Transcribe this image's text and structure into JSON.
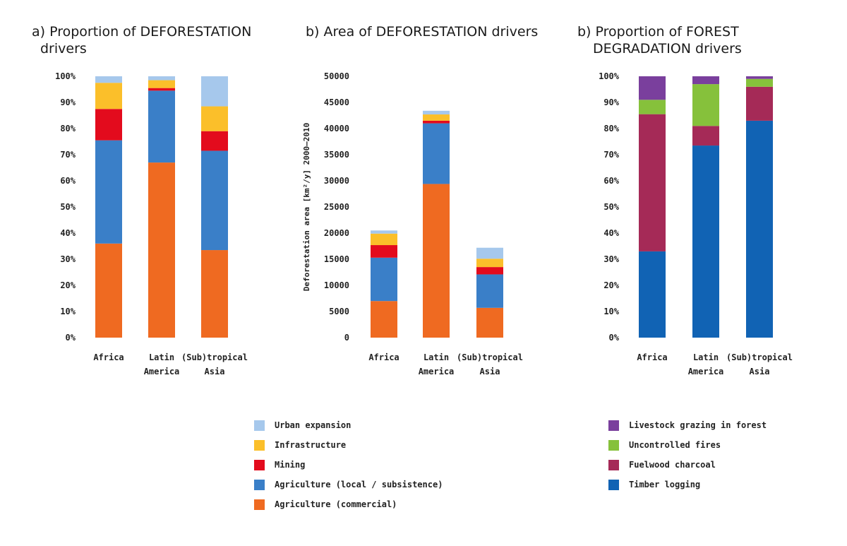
{
  "titles": {
    "a": [
      "a) Proportion of DEFORESTATION",
      "drivers"
    ],
    "b": [
      "b) Area of DEFORESTATION drivers"
    ],
    "c": [
      "b) Proportion of FOREST",
      "DEGRADATION drivers"
    ]
  },
  "colors": {
    "urban": "#a6c8ec",
    "infra": "#fbbf2a",
    "mining": "#e30b1d",
    "agri_local": "#3a7fc8",
    "agri_comm": "#ef6a21",
    "livestock": "#7a3f9d",
    "fires": "#86c13b",
    "fuelwood": "#a52a57",
    "timber": "#1163b4"
  },
  "chart_data": [
    {
      "type": "bar",
      "stacked": true,
      "title": "a) Proportion of DEFORESTATION drivers",
      "categories": [
        [
          "Africa"
        ],
        [
          "Latin",
          "America"
        ],
        [
          "(Sub)tropical",
          "Asia"
        ]
      ],
      "yticks": [
        "0%",
        "10%",
        "20%",
        "30%",
        "40%",
        "50%",
        "60%",
        "70%",
        "80%",
        "90%",
        "100%"
      ],
      "ylim": [
        0,
        100
      ],
      "ylabel": "",
      "series": [
        {
          "name": "Agriculture (commercial)",
          "color_key": "agri_comm",
          "values": [
            36,
            67,
            33.5
          ]
        },
        {
          "name": "Agriculture (local / subsistence)",
          "color_key": "agri_local",
          "values": [
            39.5,
            27.5,
            38
          ]
        },
        {
          "name": "Mining",
          "color_key": "mining",
          "values": [
            12,
            1,
            7.5
          ]
        },
        {
          "name": "Infrastructure",
          "color_key": "infra",
          "values": [
            10,
            3,
            9.5
          ]
        },
        {
          "name": "Urban expansion",
          "color_key": "urban",
          "values": [
            2.5,
            1.5,
            11.5
          ]
        }
      ]
    },
    {
      "type": "bar",
      "stacked": true,
      "title": "b) Area of DEFORESTATION drivers",
      "categories": [
        [
          "Africa"
        ],
        [
          "Latin",
          "America"
        ],
        [
          "(Sub)tropical",
          "Asia"
        ]
      ],
      "yticks": [
        "0",
        "5000",
        "10000",
        "15000",
        "20000",
        "25000",
        "30000",
        "35000",
        "40000",
        "45000",
        "50000"
      ],
      "ylim": [
        0,
        50000
      ],
      "ylabel": "Deforestation area [km²/y] 2000–2010",
      "series": [
        {
          "name": "Agriculture (commercial)",
          "color_key": "agri_comm",
          "values": [
            7000,
            29400,
            5700
          ]
        },
        {
          "name": "Agriculture (local / subsistence)",
          "color_key": "agri_local",
          "values": [
            8300,
            11600,
            6400
          ]
        },
        {
          "name": "Mining",
          "color_key": "mining",
          "values": [
            2400,
            500,
            1400
          ]
        },
        {
          "name": "Infrastructure",
          "color_key": "infra",
          "values": [
            2200,
            1200,
            1600
          ]
        },
        {
          "name": "Urban expansion",
          "color_key": "urban",
          "values": [
            600,
            700,
            2100
          ]
        }
      ]
    },
    {
      "type": "bar",
      "stacked": true,
      "title": "b) Proportion of FOREST DEGRADATION drivers",
      "categories": [
        [
          "Africa"
        ],
        [
          "Latin",
          "America"
        ],
        [
          "(Sub)tropical",
          "Asia"
        ]
      ],
      "yticks": [
        "0%",
        "10%",
        "20%",
        "30%",
        "40%",
        "50%",
        "60%",
        "70%",
        "80%",
        "90%",
        "100%"
      ],
      "ylim": [
        0,
        100
      ],
      "ylabel": "",
      "series": [
        {
          "name": "Timber logging",
          "color_key": "timber",
          "values": [
            33,
            73.5,
            83
          ]
        },
        {
          "name": "Fuelwood charcoal",
          "color_key": "fuelwood",
          "values": [
            52.5,
            7.5,
            13
          ]
        },
        {
          "name": "Uncontrolled fires",
          "color_key": "fires",
          "values": [
            5.5,
            16,
            3
          ]
        },
        {
          "name": "Livestock grazing in forest",
          "color_key": "livestock",
          "values": [
            9,
            3,
            1
          ]
        }
      ]
    }
  ],
  "legend_left": [
    {
      "label": "Urban expansion",
      "color_key": "urban"
    },
    {
      "label": "Infrastructure",
      "color_key": "infra"
    },
    {
      "label": "Mining",
      "color_key": "mining"
    },
    {
      "label": "Agriculture (local / subsistence)",
      "color_key": "agri_local"
    },
    {
      "label": "Agriculture (commercial)",
      "color_key": "agri_comm"
    }
  ],
  "legend_right": [
    {
      "label": "Livestock grazing in forest",
      "color_key": "livestock"
    },
    {
      "label": "Uncontrolled fires",
      "color_key": "fires"
    },
    {
      "label": "Fuelwood charcoal",
      "color_key": "fuelwood"
    },
    {
      "label": "Timber logging",
      "color_key": "timber"
    }
  ]
}
